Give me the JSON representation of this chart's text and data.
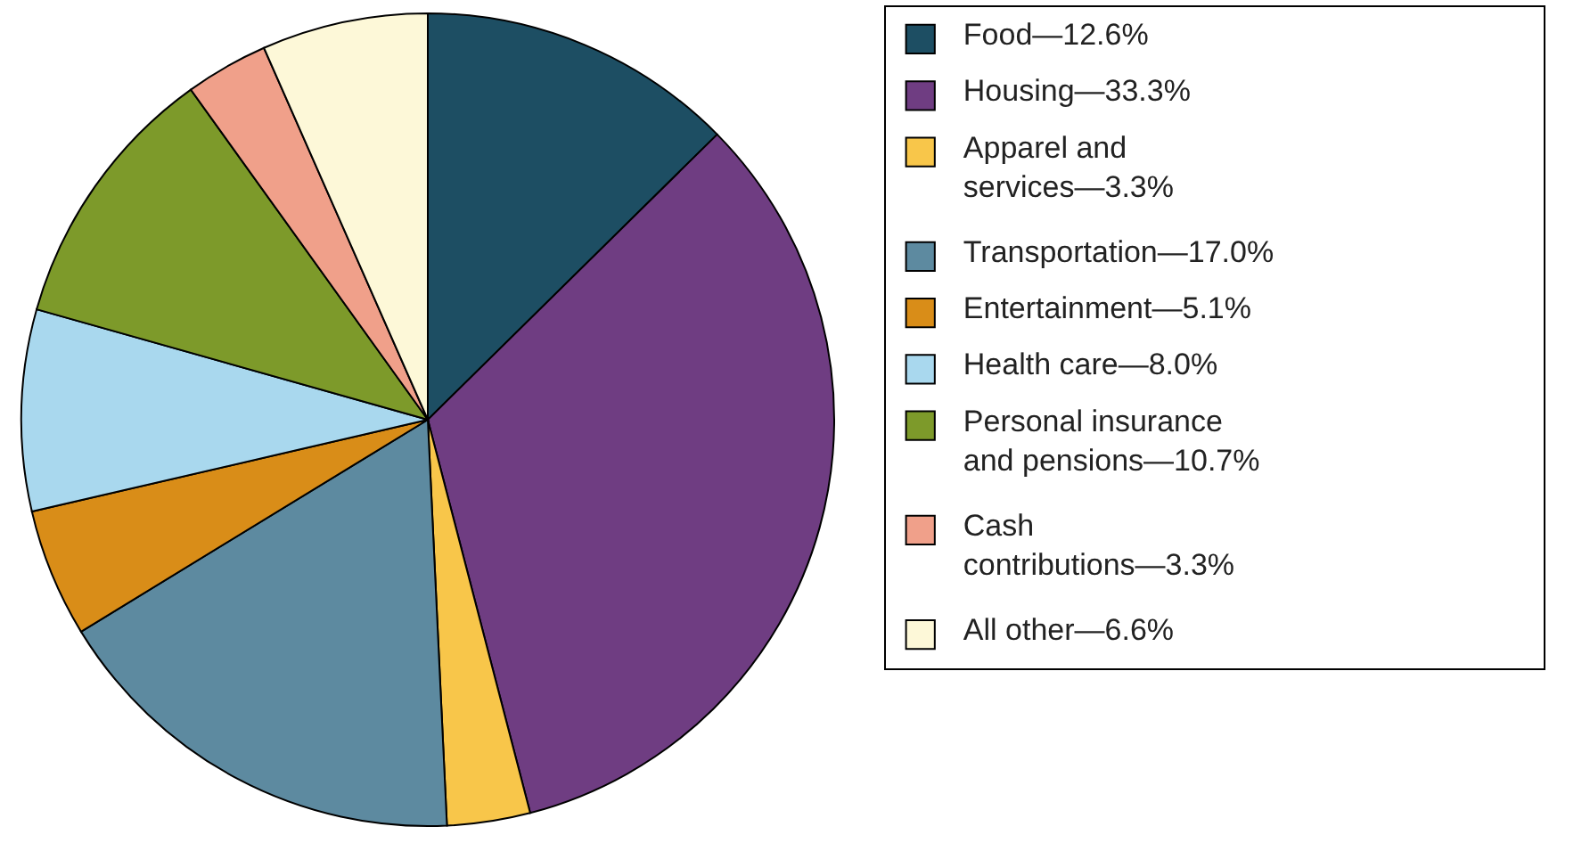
{
  "chart_data": {
    "type": "pie",
    "legend": "right",
    "categories": [
      "Food—12.6%",
      "Housing—33.3%",
      "Apparel and services—3.3%",
      "Transportation—17.0%",
      "Entertainment—5.1%",
      "Health care—8.0%",
      "Personal insurance and pensions—10.7%",
      "Cash contributions—3.3%",
      "All other—6.6%"
    ],
    "values": [
      12.6,
      33.3,
      3.3,
      17.0,
      5.1,
      8.0,
      10.7,
      3.3,
      6.6
    ],
    "colors": [
      "#1d4e63",
      "#6f3d82",
      "#f8c64a",
      "#5d8aa0",
      "#d98d18",
      "#a9d8ee",
      "#7d9a2a",
      "#f0a08a",
      "#fdf8d8"
    ]
  }
}
